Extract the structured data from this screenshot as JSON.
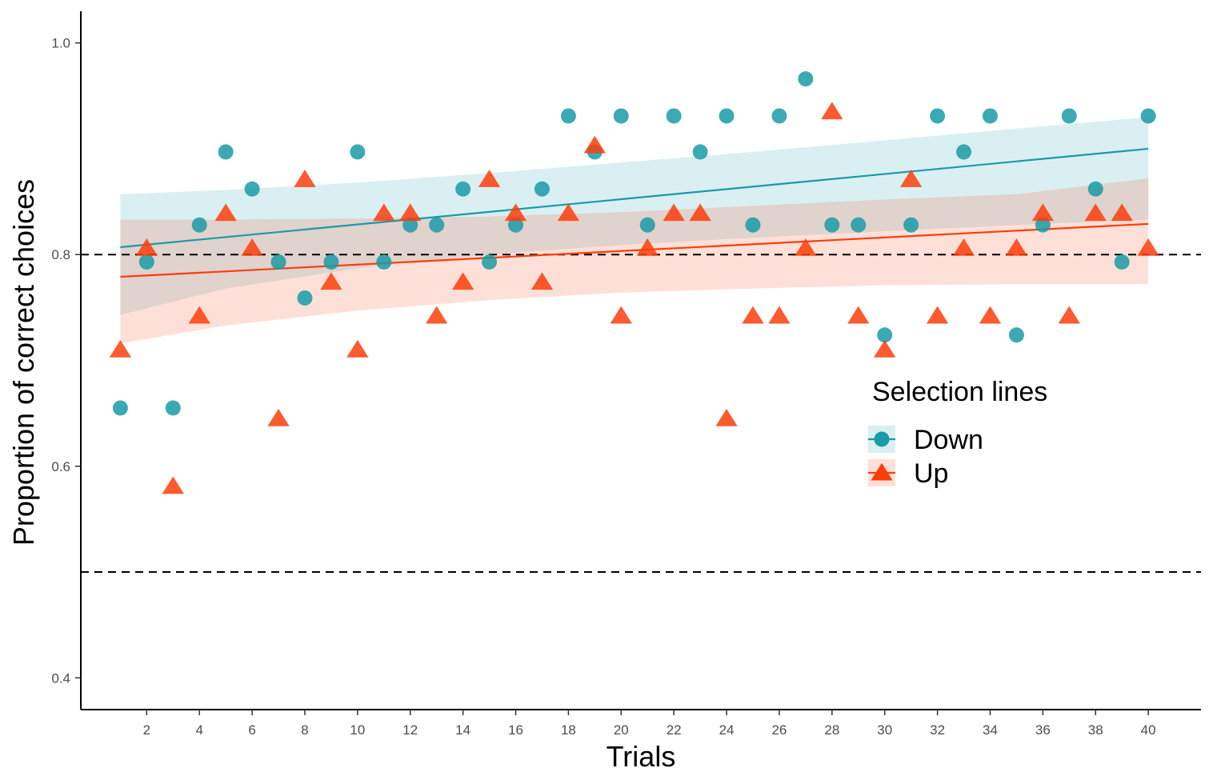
{
  "chart_data": {
    "type": "scatter",
    "title": "",
    "xlabel": "Trials",
    "ylabel": "Proportion of correct choices",
    "xlim": [
      -0.5,
      42.0
    ],
    "ylim": [
      0.37,
      1.03
    ],
    "x_ticks": [
      2,
      4,
      6,
      8,
      10,
      12,
      14,
      16,
      18,
      20,
      22,
      24,
      26,
      28,
      30,
      32,
      34,
      36,
      38,
      40
    ],
    "y_ticks": [
      0.4,
      0.6,
      0.8,
      1.0
    ],
    "y_tick_labels": [
      "0.4",
      "0.6",
      "0.8",
      "1.0"
    ],
    "grid": false,
    "reference_lines": [
      {
        "y": 0.8,
        "style": "dashed"
      },
      {
        "y": 0.5,
        "style": "dashed"
      }
    ],
    "legend": {
      "title": "Selection lines",
      "placement": "right"
    },
    "series": [
      {
        "name": "Down",
        "marker": "circle",
        "color": "#1a9ba7",
        "fill": "#d4eef1",
        "x": [
          1,
          2,
          3,
          4,
          5,
          6,
          7,
          8,
          9,
          10,
          11,
          12,
          13,
          14,
          15,
          16,
          17,
          18,
          19,
          20,
          21,
          22,
          23,
          24,
          25,
          26,
          27,
          28,
          29,
          30,
          31,
          32,
          33,
          34,
          35,
          36,
          37,
          38,
          39,
          40
        ],
        "values": [
          0.655,
          0.793,
          0.655,
          0.828,
          0.897,
          0.862,
          0.793,
          0.759,
          0.793,
          0.897,
          0.793,
          0.828,
          0.828,
          0.862,
          0.793,
          0.828,
          0.862,
          0.931,
          0.897,
          0.931,
          0.828,
          0.931,
          0.897,
          0.931,
          0.828,
          0.931,
          0.966,
          0.828,
          0.828,
          0.724,
          0.828,
          0.931,
          0.897,
          0.931,
          0.724,
          0.828,
          0.931,
          0.862,
          0.793,
          0.931
        ],
        "fit": {
          "x": [
            1,
            40
          ],
          "y": [
            0.807,
            0.9
          ]
        },
        "band": {
          "x": [
            1,
            5,
            10,
            15,
            20,
            25,
            30,
            35,
            40
          ],
          "lower": [
            0.743,
            0.768,
            0.787,
            0.8,
            0.809,
            0.816,
            0.822,
            0.828,
            0.833
          ],
          "upper": [
            0.857,
            0.861,
            0.868,
            0.877,
            0.887,
            0.897,
            0.908,
            0.919,
            0.93
          ]
        }
      },
      {
        "name": "Up",
        "marker": "triangle",
        "color": "#fc3d0a",
        "fill": "#fcd9d0",
        "x": [
          1,
          2,
          3,
          4,
          5,
          6,
          7,
          8,
          9,
          10,
          11,
          12,
          13,
          14,
          15,
          16,
          17,
          18,
          19,
          20,
          21,
          22,
          23,
          24,
          25,
          26,
          27,
          28,
          29,
          30,
          31,
          32,
          33,
          34,
          35,
          36,
          37,
          38,
          39,
          40
        ],
        "values": [
          0.71,
          0.806,
          0.581,
          0.742,
          0.839,
          0.806,
          0.645,
          0.871,
          0.774,
          0.71,
          0.839,
          0.839,
          0.742,
          0.774,
          0.871,
          0.839,
          0.774,
          0.839,
          0.903,
          0.742,
          0.806,
          0.839,
          0.839,
          0.645,
          0.742,
          0.742,
          0.806,
          0.935,
          0.742,
          0.71,
          0.871,
          0.742,
          0.806,
          0.742,
          0.806,
          0.839,
          0.742,
          0.839,
          0.839,
          0.806
        ],
        "fit": {
          "x": [
            1,
            40
          ],
          "y": [
            0.779,
            0.829
          ]
        },
        "band": {
          "x": [
            1,
            5,
            10,
            15,
            20,
            25,
            30,
            35,
            40
          ],
          "lower": [
            0.716,
            0.733,
            0.747,
            0.757,
            0.764,
            0.768,
            0.771,
            0.772,
            0.772
          ],
          "upper": [
            0.833,
            0.833,
            0.834,
            0.836,
            0.84,
            0.846,
            0.852,
            0.857,
            0.872
          ]
        }
      }
    ]
  }
}
